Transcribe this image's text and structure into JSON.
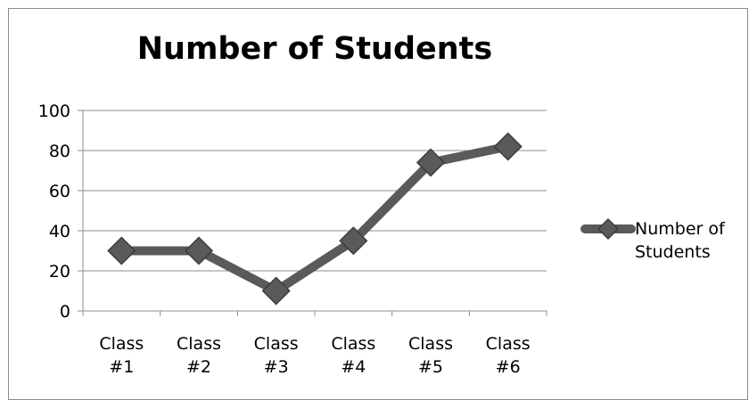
{
  "chart_data": {
    "type": "line",
    "title": "Number of Students",
    "categories": [
      [
        "Class",
        "#1"
      ],
      [
        "Class",
        "#2"
      ],
      [
        "Class",
        "#3"
      ],
      [
        "Class",
        "#4"
      ],
      [
        "Class",
        "#5"
      ],
      [
        "Class",
        "#6"
      ]
    ],
    "series": [
      {
        "name": [
          "Number of",
          "Students"
        ],
        "values": [
          30,
          30,
          10,
          35,
          74,
          82
        ],
        "color": "#5a5a5a",
        "marker": "diamond"
      }
    ],
    "ylim": [
      0,
      100
    ],
    "yticks": [
      0,
      20,
      40,
      60,
      80,
      100
    ],
    "grid": true,
    "legend": "right"
  }
}
